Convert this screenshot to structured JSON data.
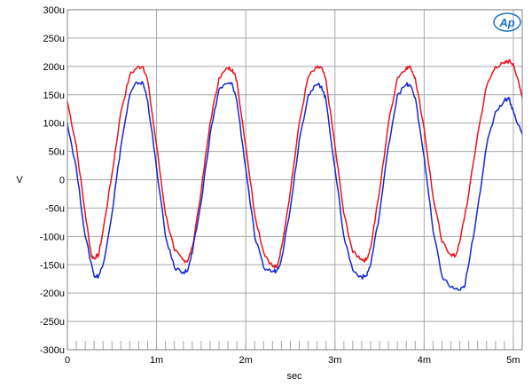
{
  "chart_data": {
    "type": "line",
    "title": "",
    "xlabel": "sec",
    "ylabel": "V",
    "xlim": [
      0,
      0.0051
    ],
    "ylim": [
      -300,
      300
    ],
    "x_ticks": [
      {
        "value": 0,
        "label": "0"
      },
      {
        "value": 0.001,
        "label": "1m"
      },
      {
        "value": 0.002,
        "label": "2m"
      },
      {
        "value": 0.003,
        "label": "3m"
      },
      {
        "value": 0.004,
        "label": "4m"
      },
      {
        "value": 0.005,
        "label": "5m"
      }
    ],
    "y_ticks": [
      {
        "value": 300,
        "label": "300u"
      },
      {
        "value": 250,
        "label": "250u"
      },
      {
        "value": 200,
        "label": "200u"
      },
      {
        "value": 150,
        "label": "150u"
      },
      {
        "value": 100,
        "label": "100u"
      },
      {
        "value": 50,
        "label": "50u"
      },
      {
        "value": 0,
        "label": "0"
      },
      {
        "value": -50,
        "label": "-50u"
      },
      {
        "value": -100,
        "label": "-100u"
      },
      {
        "value": -150,
        "label": "-150u"
      },
      {
        "value": -200,
        "label": "-200u"
      },
      {
        "value": -250,
        "label": "-250u"
      },
      {
        "value": -300,
        "label": "-300u"
      }
    ],
    "grid": true,
    "series": [
      {
        "color": "#e8141b",
        "x": [
          0,
          0.0001,
          0.0002,
          0.00027,
          0.0003,
          0.00035,
          0.0004,
          0.0005,
          0.0006,
          0.0007,
          0.00078,
          0.00085,
          0.0009,
          0.001,
          0.0011,
          0.0012,
          0.0013,
          0.00135,
          0.0014,
          0.0015,
          0.0016,
          0.0017,
          0.0018,
          0.00185,
          0.0019,
          0.002,
          0.0021,
          0.0022,
          0.0023,
          0.00235,
          0.0024,
          0.0025,
          0.0026,
          0.0027,
          0.0028,
          0.00285,
          0.0029,
          0.003,
          0.0031,
          0.0032,
          0.0033,
          0.00335,
          0.0034,
          0.0035,
          0.0036,
          0.0037,
          0.0038,
          0.00385,
          0.0039,
          0.004,
          0.0041,
          0.0042,
          0.0043,
          0.00435,
          0.0044,
          0.0045,
          0.0046,
          0.0047,
          0.0048,
          0.0049,
          0.00495,
          0.005,
          0.0051
        ],
        "y": [
          138,
          60,
          -60,
          -135,
          -138,
          -133,
          -90,
          10,
          120,
          185,
          198,
          200,
          175,
          60,
          -60,
          -125,
          -142,
          -143,
          -120,
          -20,
          100,
          180,
          197,
          195,
          175,
          60,
          -60,
          -128,
          -153,
          -155,
          -120,
          -20,
          100,
          182,
          198,
          197,
          175,
          60,
          -60,
          -128,
          -140,
          -142,
          -120,
          -20,
          100,
          180,
          198,
          198,
          180,
          90,
          -30,
          -110,
          -132,
          -135,
          -110,
          -25,
          80,
          165,
          200,
          205,
          210,
          205,
          145
        ]
      },
      {
        "color": "#1428d2",
        "x": [
          0,
          0.0001,
          0.0002,
          0.0003,
          0.00035,
          0.0004,
          0.0005,
          0.0006,
          0.0007,
          0.00078,
          0.00085,
          0.0009,
          0.001,
          0.0011,
          0.0012,
          0.0013,
          0.00135,
          0.0014,
          0.0015,
          0.0016,
          0.0017,
          0.0018,
          0.00185,
          0.0019,
          0.002,
          0.0021,
          0.0022,
          0.0023,
          0.00235,
          0.0024,
          0.0025,
          0.0026,
          0.0027,
          0.0028,
          0.00285,
          0.0029,
          0.003,
          0.0031,
          0.0032,
          0.0033,
          0.00335,
          0.0034,
          0.0035,
          0.0036,
          0.0037,
          0.0038,
          0.00385,
          0.0039,
          0.004,
          0.0041,
          0.0042,
          0.0043,
          0.0044,
          0.00445,
          0.0045,
          0.0046,
          0.0047,
          0.0048,
          0.0049,
          0.00495,
          0.005,
          0.0051
        ],
        "y": [
          100,
          20,
          -100,
          -170,
          -170,
          -150,
          -60,
          60,
          150,
          172,
          170,
          140,
          20,
          -100,
          -155,
          -163,
          -160,
          -130,
          -40,
          80,
          160,
          170,
          168,
          140,
          20,
          -100,
          -155,
          -162,
          -160,
          -140,
          -50,
          70,
          150,
          168,
          165,
          140,
          20,
          -100,
          -160,
          -172,
          -170,
          -150,
          -60,
          60,
          150,
          168,
          165,
          145,
          40,
          -90,
          -170,
          -190,
          -195,
          -190,
          -150,
          -50,
          60,
          120,
          140,
          145,
          120,
          80
        ]
      }
    ]
  }
}
